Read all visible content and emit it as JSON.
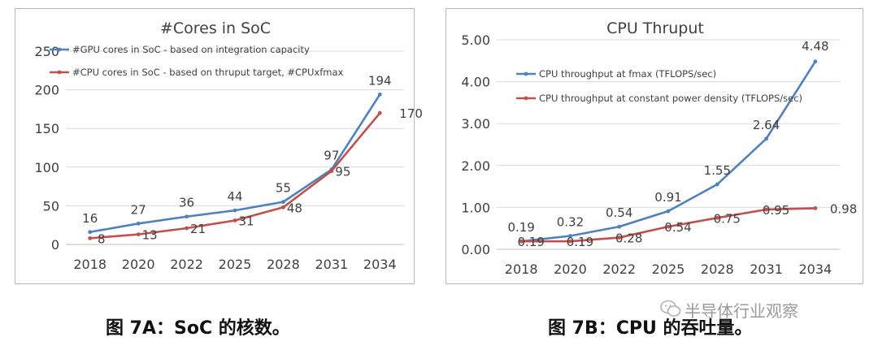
{
  "colors": {
    "blue": "#4f81bd",
    "red": "#c0504d",
    "grid": "#d9d9d9",
    "axis": "#bfbfbf",
    "text": "#595959"
  },
  "chart_data": [
    {
      "type": "line",
      "title": "#Cores in SoC",
      "xlabel": "",
      "ylabel": "",
      "categories": [
        "2018",
        "2020",
        "2022",
        "2025",
        "2028",
        "2031",
        "2034"
      ],
      "yticks": [
        "0",
        "50",
        "100",
        "150",
        "200",
        "250"
      ],
      "ylim": [
        0,
        250
      ],
      "grid": true,
      "legend": "top-left",
      "series": [
        {
          "name": "#GPU cores in SoC - based on integration capacity",
          "color": "#4f81bd",
          "values": [
            16,
            27,
            36,
            44,
            55,
            97,
            194
          ],
          "labels": [
            "16",
            "27",
            "36",
            "44",
            "55",
            "97",
            "194"
          ]
        },
        {
          "name": "#CPU cores in SoC - based on thruput target, #CPUxfmax",
          "color": "#c0504d",
          "values": [
            8,
            13,
            21,
            31,
            48,
            95,
            170
          ],
          "labels": [
            "8",
            "13",
            "21",
            "31",
            "48",
            "95",
            "170"
          ]
        }
      ]
    },
    {
      "type": "line",
      "title": "CPU Thruput",
      "xlabel": "",
      "ylabel": "",
      "categories": [
        "2018",
        "2020",
        "2022",
        "2025",
        "2028",
        "2031",
        "2034"
      ],
      "yticks": [
        "0.00",
        "1.00",
        "2.00",
        "3.00",
        "4.00",
        "5.00"
      ],
      "ylim": [
        0,
        5
      ],
      "grid": true,
      "legend": "top-left",
      "series": [
        {
          "name": "CPU throughput at fmax (TFLOPS/sec)",
          "color": "#4f81bd",
          "values": [
            0.19,
            0.32,
            0.54,
            0.91,
            1.55,
            2.64,
            4.48
          ],
          "labels": [
            "0.19",
            "0.32",
            "0.54",
            "0.91",
            "1.55",
            "2.64",
            "4.48"
          ]
        },
        {
          "name": "CPU throughput at constant power density (TFLOPS/sec)",
          "color": "#c0504d",
          "values": [
            0.19,
            0.19,
            0.28,
            0.54,
            0.75,
            0.95,
            0.98
          ],
          "labels": [
            "0.19",
            "0.19",
            "0.28",
            "0.54",
            "0.75",
            "0.95",
            "0.98"
          ]
        }
      ]
    }
  ],
  "captions": {
    "a": "图 7A：SoC 的核数。",
    "b": "图 7B：CPU 的吞吐量。"
  },
  "watermark": {
    "text": "半导体行业观察",
    "icon": "wechat-icon"
  }
}
